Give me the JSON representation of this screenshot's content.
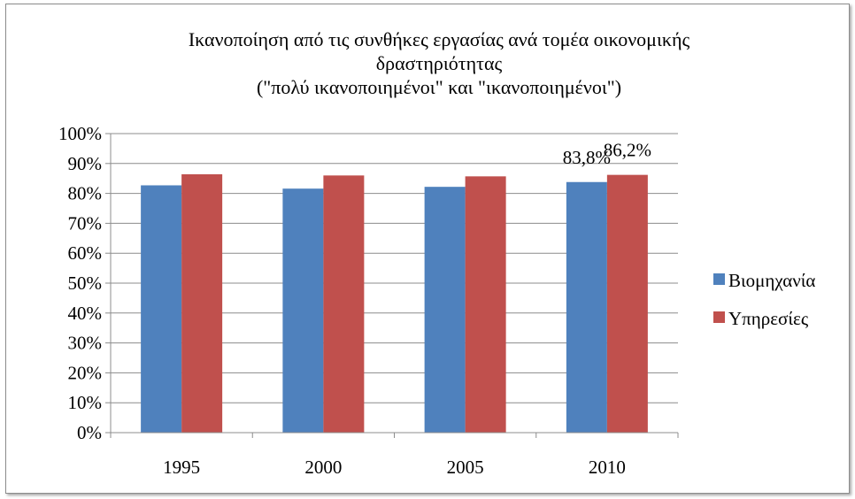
{
  "chart_data": {
    "type": "bar",
    "title_lines": [
      "Ικανοποίηση από τις συνθήκες εργασίας ανά τομέα οικονομικής",
      "δραστηριότητας",
      "(\"πολύ ικανοποιημένοι\" και \"ικανοποιημένοι\")"
    ],
    "categories": [
      "1995",
      "2000",
      "2005",
      "2010"
    ],
    "series": [
      {
        "name": "Βιομηχανία",
        "color": "#4f81bd",
        "values": [
          82.7,
          81.6,
          82.2,
          83.8
        ],
        "data_labels": [
          "",
          "",
          "",
          "83,8%"
        ]
      },
      {
        "name": "Υπηρεσίες",
        "color": "#c0504d",
        "values": [
          86.4,
          86.0,
          85.7,
          86.2
        ],
        "data_labels": [
          "",
          "",
          "",
          "86,2%"
        ]
      }
    ],
    "ylim": [
      0,
      100
    ],
    "yticks": [
      0,
      10,
      20,
      30,
      40,
      50,
      60,
      70,
      80,
      90,
      100
    ],
    "ytick_labels": [
      "0%",
      "10%",
      "20%",
      "30%",
      "40%",
      "50%",
      "60%",
      "70%",
      "80%",
      "90%",
      "100%"
    ],
    "grid": true,
    "legend_position": "right"
  }
}
